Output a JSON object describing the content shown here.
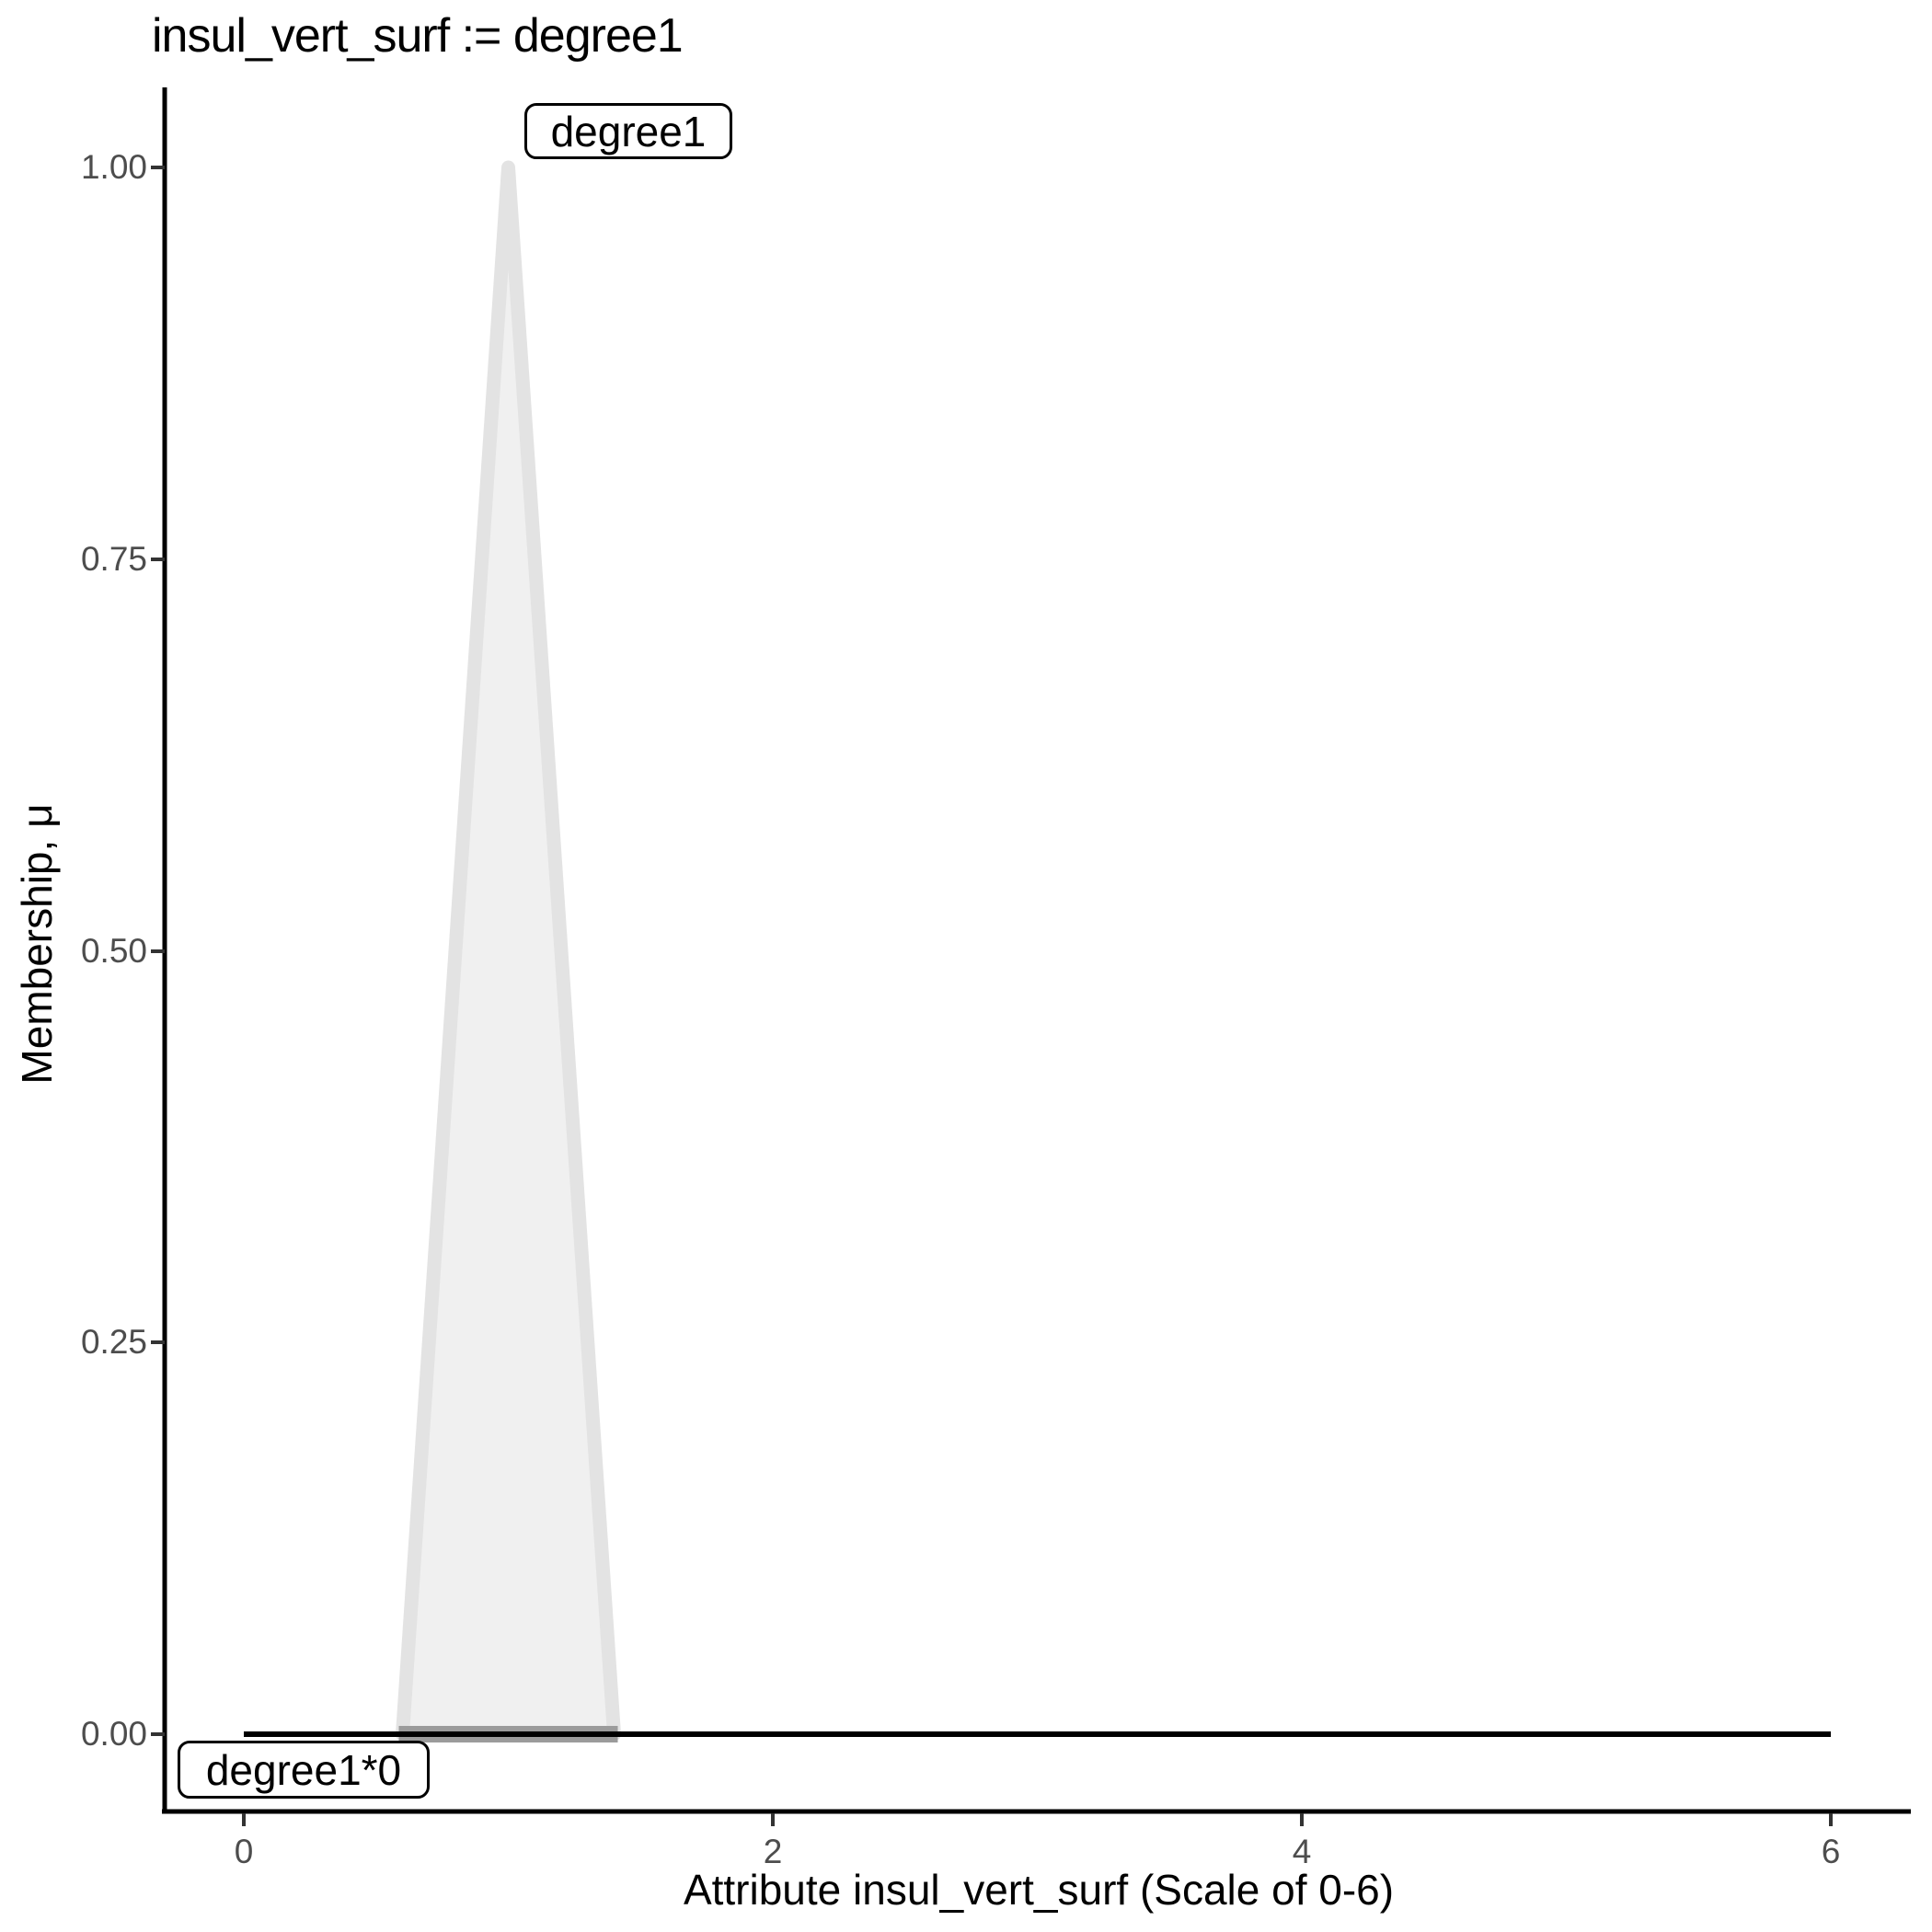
{
  "chart": {
    "title": "insul_vert_surf := degree1"
  },
  "chart_data": {
    "type": "area",
    "title": "insul_vert_surf := degree1",
    "xlabel": "Attribute insul_vert_surf (Scale of 0-6)",
    "ylabel": "Membership, μ",
    "xlim": [
      0,
      6
    ],
    "ylim": [
      0,
      1
    ],
    "grid": false,
    "legend_position": "none",
    "x_ticks": [
      "0",
      "2",
      "4",
      "6"
    ],
    "y_ticks": [
      "1.00",
      "0.75",
      "0.50",
      "0.25",
      "0.00"
    ],
    "series": [
      {
        "name": "degree1",
        "kind": "triangular-membership-function",
        "points": [
          [
            0.6,
            0
          ],
          [
            1,
            1
          ],
          [
            1.4,
            0
          ]
        ],
        "peak": {
          "x": 1,
          "mu": 1.0
        }
      },
      {
        "name": "degree1*0",
        "kind": "line",
        "points": [
          [
            0,
            0
          ],
          [
            6,
            0
          ]
        ]
      }
    ],
    "labels": [
      {
        "text": "degree1",
        "anchor": "peak-of-triangle"
      },
      {
        "text": "degree1*0",
        "anchor": "left-end-of-zero-line"
      }
    ],
    "colors": {
      "triangle_fill": "#f0f0f0",
      "triangle_stroke": "#e3e3e3",
      "base_band": "#9b9b9b",
      "zero_line": "#000000",
      "axis": "#000000",
      "tick_mark": "#333333",
      "tick_text": "#4d4d4d"
    }
  }
}
